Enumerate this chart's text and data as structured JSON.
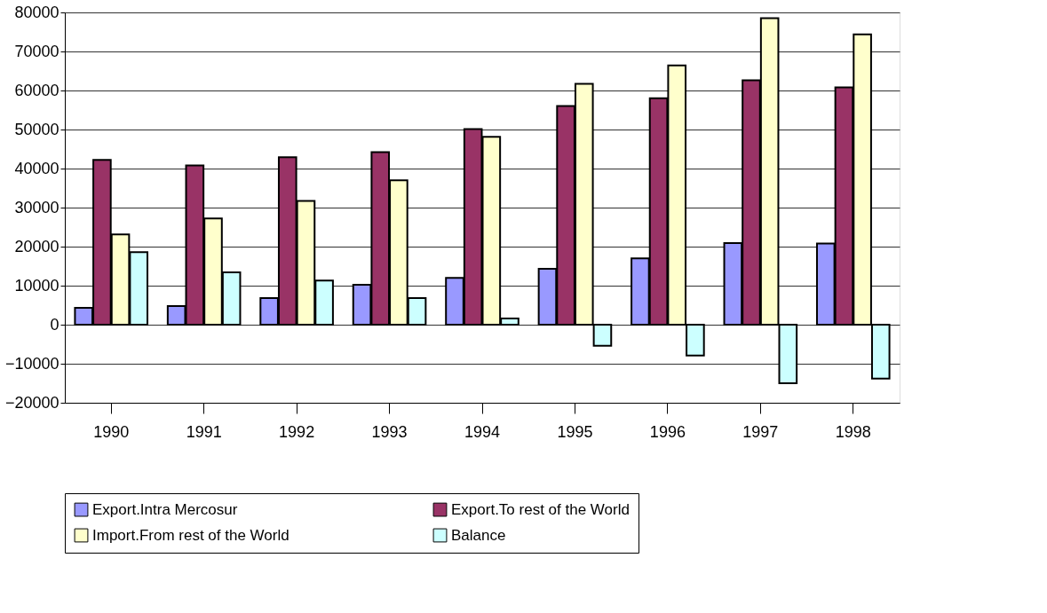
{
  "chart_data": {
    "type": "bar",
    "categories": [
      "1990",
      "1991",
      "1992",
      "1993",
      "1994",
      "1995",
      "1996",
      "1997",
      "1998"
    ],
    "series": [
      {
        "name": "Export.Intra Mercosur",
        "color": "#9999ff",
        "values": [
          4300,
          4800,
          6800,
          10200,
          12000,
          14300,
          17000,
          20900,
          20800
        ]
      },
      {
        "name": "Export.To rest of the World",
        "color": "#993366",
        "values": [
          42200,
          40800,
          42900,
          44200,
          50100,
          56000,
          58000,
          62600,
          60800
        ]
      },
      {
        "name": "Import.From rest of the World",
        "color": "#ffffcc",
        "values": [
          23100,
          27200,
          31700,
          37000,
          48100,
          61700,
          66400,
          78500,
          74400
        ]
      },
      {
        "name": "Balance",
        "color": "#ccffff",
        "values": [
          18600,
          13400,
          11300,
          6800,
          1600,
          -5400,
          -7900,
          -15000,
          -13800
        ]
      }
    ],
    "ylim": [
      -20000,
      80000
    ],
    "yticks": [
      -20000,
      -10000,
      0,
      10000,
      20000,
      30000,
      40000,
      50000,
      60000,
      70000,
      80000
    ],
    "grid": "y",
    "legend": "bottom"
  }
}
